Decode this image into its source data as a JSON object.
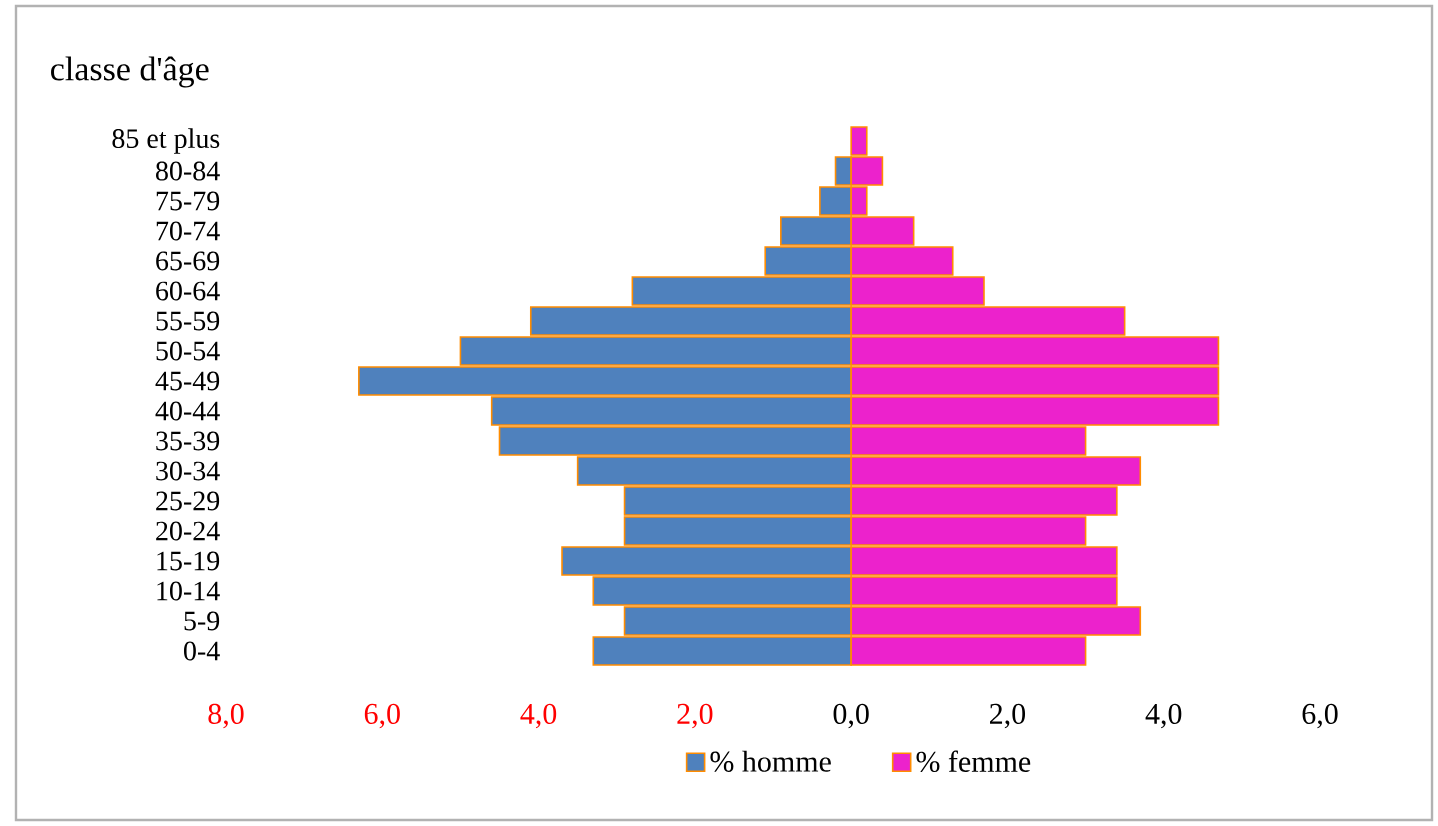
{
  "chart_data": {
    "type": "bar",
    "orientation": "horizontal",
    "ylabel": "classe d'âge",
    "categories": [
      "85 et plus",
      "80-84",
      "75-79",
      "70-74",
      "65-69",
      "60-64",
      "55-59",
      "50-54",
      "45-49",
      "40-44",
      "35-39",
      "30-34",
      "25-29",
      "20-24",
      "15-19",
      "10-14",
      "5-9",
      "0-4"
    ],
    "series": [
      {
        "name": "% homme",
        "color": "#4f81bd",
        "values": [
          0.0,
          -0.2,
          -0.4,
          -0.9,
          -1.1,
          -2.8,
          -4.1,
          -5.0,
          -6.3,
          -4.6,
          -4.5,
          -3.5,
          -2.9,
          -2.9,
          -3.7,
          -3.3,
          -2.9,
          -3.3
        ]
      },
      {
        "name": "% femme",
        "color": "#ec22cc",
        "values": [
          0.2,
          0.4,
          0.2,
          0.8,
          1.3,
          1.7,
          3.5,
          4.7,
          4.7,
          4.7,
          3.0,
          3.7,
          3.4,
          3.0,
          3.4,
          3.4,
          3.7,
          3.0
        ]
      }
    ],
    "xlim": [
      -8,
      6
    ],
    "xticks": [
      {
        "value": -8,
        "label": "8,0"
      },
      {
        "value": -6,
        "label": "6,0"
      },
      {
        "value": -4,
        "label": "4,0"
      },
      {
        "value": -2,
        "label": "2,0"
      },
      {
        "value": 0,
        "label": "0,0"
      },
      {
        "value": 2,
        "label": "2,0"
      },
      {
        "value": 4,
        "label": "4,0"
      },
      {
        "value": 6,
        "label": "6,0"
      }
    ],
    "grid": false,
    "legend": "bottom",
    "stacked": true
  }
}
